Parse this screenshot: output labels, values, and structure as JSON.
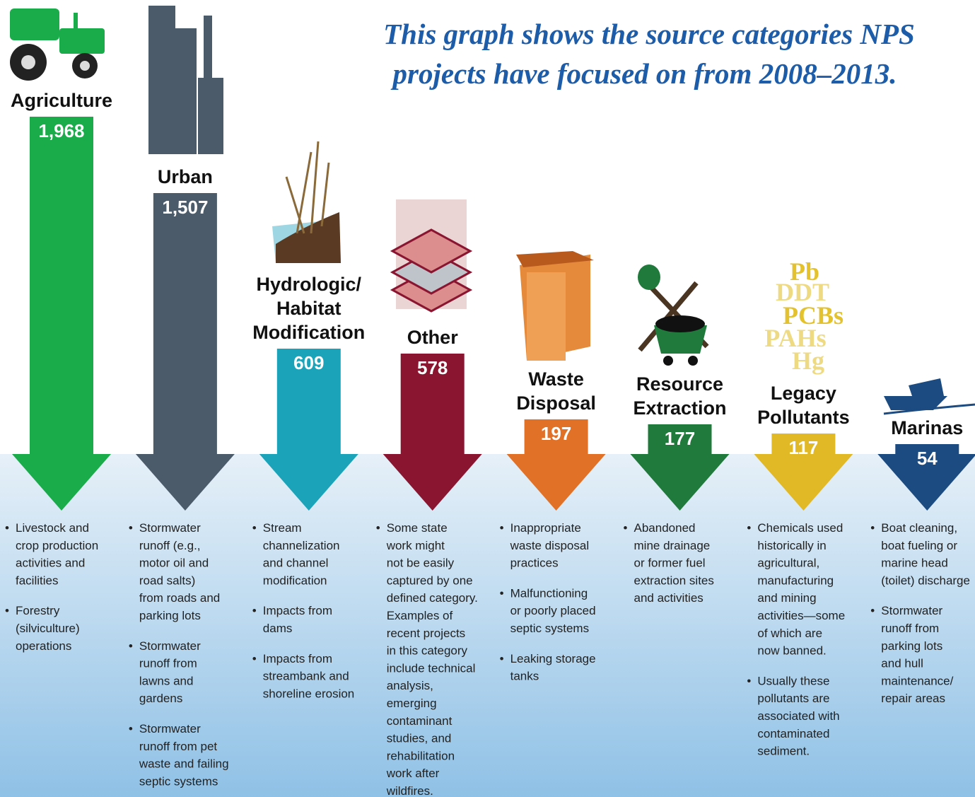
{
  "header": {
    "lines": [
      "This graph shows the source categories NPS",
      "projects have focused on from 2008–2013."
    ]
  },
  "categories": [
    {
      "title": [
        "Agriculture"
      ],
      "value": "1,968",
      "color": "#1aab4b",
      "bullets": [
        [
          "Livestock and",
          "crop production",
          "activities and",
          "facilities"
        ],
        [
          "Forestry",
          "(silviculture)",
          "operations"
        ]
      ]
    },
    {
      "title": [
        "Urban"
      ],
      "value": "1,507",
      "color": "#4b5b69",
      "bullets": [
        [
          "Stormwater",
          "runoff (e.g.,",
          "motor oil and",
          "road salts)",
          "from roads and",
          "parking lots"
        ],
        [
          "Stormwater",
          "runoff from",
          "lawns and",
          "gardens"
        ],
        [
          "Stormwater",
          "runoff from pet",
          "waste and failing",
          "septic systems"
        ]
      ]
    },
    {
      "title": [
        "Hydrologic/",
        "Habitat",
        "Modification"
      ],
      "value": "609",
      "color": "#1ba4b9",
      "bullets": [
        [
          "Stream",
          "channelization",
          "and channel",
          "modification"
        ],
        [
          "Impacts from",
          "dams"
        ],
        [
          "Impacts from",
          "streambank and",
          "shoreline erosion"
        ]
      ]
    },
    {
      "title": [
        "Other"
      ],
      "value": "578",
      "color": "#8a1530",
      "bullets": [
        [
          "Some state",
          "work might",
          "not be easily",
          "captured by one",
          "defined category.",
          "Examples of",
          "recent projects",
          "in this category",
          "include technical",
          "analysis,",
          "emerging",
          "contaminant",
          "studies, and",
          "rehabilitation",
          "work after",
          "wildfires."
        ]
      ]
    },
    {
      "title": [
        "Waste",
        "Disposal"
      ],
      "value": "197",
      "color": "#e07126",
      "bullets": [
        [
          "Inappropriate",
          "waste disposal",
          "practices"
        ],
        [
          "Malfunctioning",
          "or poorly placed",
          "septic systems"
        ],
        [
          "Leaking storage",
          "tanks"
        ]
      ]
    },
    {
      "title": [
        "Resource",
        "Extraction"
      ],
      "value": "177",
      "color": "#1f7a3b",
      "bullets": [
        [
          "Abandoned",
          "mine drainage",
          "or former fuel",
          "extraction sites",
          "and activities"
        ]
      ]
    },
    {
      "title": [
        "Legacy",
        "Pollutants"
      ],
      "value": "117",
      "color": "#e1b826",
      "bullets": [
        [
          "Chemicals used",
          "historically in",
          "agricultural,",
          "manufacturing",
          "and mining",
          "activities—some",
          "of which are",
          "now banned."
        ],
        [
          "Usually these",
          "pollutants are",
          "associated with",
          "contaminated",
          "sediment."
        ]
      ]
    },
    {
      "title": [
        "Marinas"
      ],
      "value": "54",
      "color": "#1b4b81",
      "bullets": [
        [
          "Boat cleaning,",
          "boat fueling or",
          "marine head",
          "(toilet) discharge"
        ],
        [
          "Stormwater",
          "runoff from",
          "parking lots",
          "and hull",
          "maintenance/",
          "repair areas"
        ]
      ]
    }
  ],
  "icon_text": [
    "Pb",
    "DDT",
    "PCBs",
    "PAHs",
    "Hg"
  ]
}
